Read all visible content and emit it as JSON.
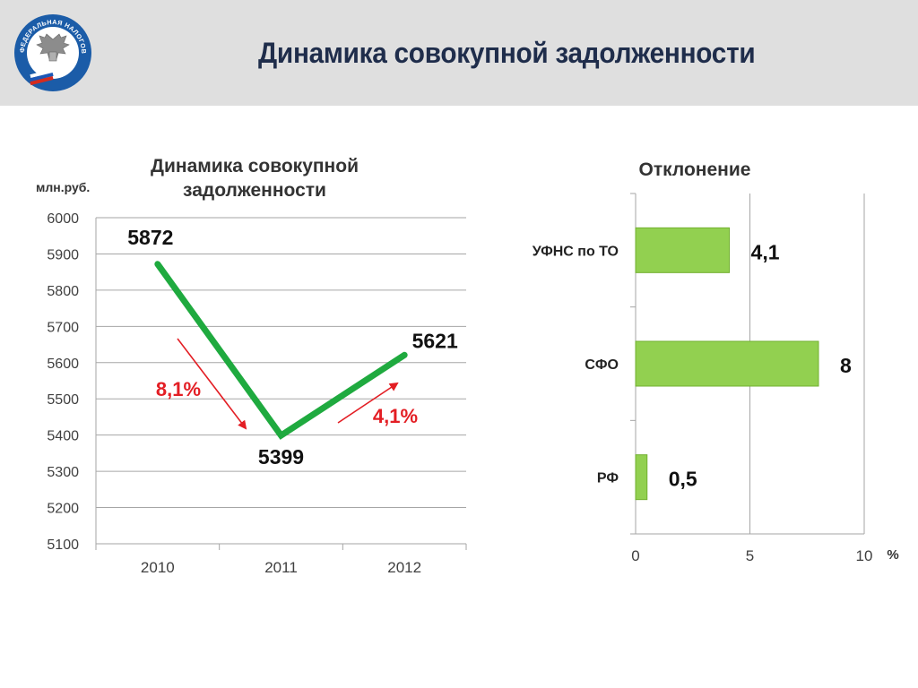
{
  "header": {
    "slide_title": "Динамика совокупной задолженности",
    "logo_text": "ФЕДЕРАЛЬНАЯ НАЛОГОВАЯ СЛУЖБА"
  },
  "colors": {
    "line_green": "#1faa3f",
    "bar_green": "#92d050",
    "bar_border": "#72b030",
    "arrow_red": "#e31e24",
    "header_bg": "#dfdfdf",
    "title_navy": "#1f2d4b"
  },
  "chart_data": [
    {
      "type": "line",
      "title_lines": [
        "Динамика совокупной",
        "задолженности"
      ],
      "unit_label": "млн.руб.",
      "categories": [
        "2010",
        "2011",
        "2012"
      ],
      "series": [
        {
          "values": [
            5872,
            5399,
            5621
          ]
        }
      ],
      "data_labels": [
        "5872",
        "5399",
        "5621"
      ],
      "ylim": [
        5100,
        6000
      ],
      "yticks": [
        5100,
        5200,
        5300,
        5400,
        5500,
        5600,
        5700,
        5800,
        5900,
        6000
      ],
      "ytick_labels": [
        "5100",
        "5200",
        "5300",
        "5400",
        "5500",
        "5600",
        "5700",
        "5800",
        "5900",
        "6000"
      ],
      "grid": true,
      "annotations": [
        {
          "text": "8,1%",
          "direction": "down"
        },
        {
          "text": "4,1%",
          "direction": "up"
        }
      ]
    },
    {
      "type": "bar",
      "orientation": "horizontal",
      "title": "Отклонение",
      "categories": [
        "УФНС по ТО",
        "СФО",
        "РФ"
      ],
      "values": [
        4.1,
        8,
        0.5
      ],
      "data_labels": [
        "4,1",
        "8",
        "0,5"
      ],
      "xlim": [
        0,
        10
      ],
      "xticks": [
        0,
        5,
        10
      ],
      "xtick_labels": [
        "0",
        "5",
        "10"
      ],
      "unit_label": "%",
      "grid": true
    }
  ]
}
